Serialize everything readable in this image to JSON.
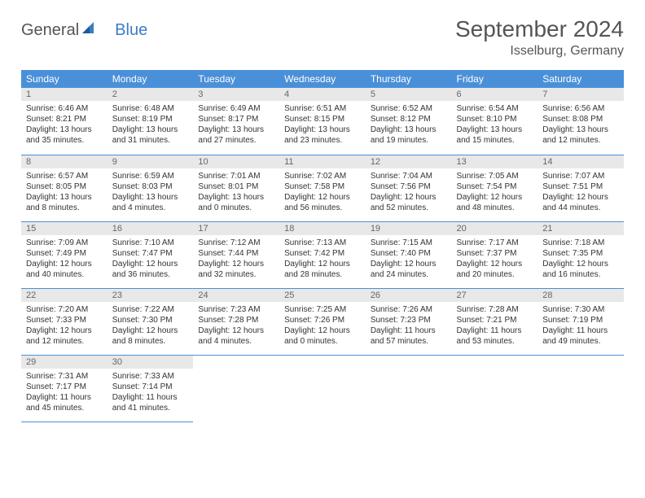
{
  "logo": {
    "general": "General",
    "blue": "Blue"
  },
  "title": "September 2024",
  "location": "Isselburg, Germany",
  "colors": {
    "header_bg": "#4a90d9",
    "header_text": "#ffffff",
    "daynum_bg": "#e8e8e8",
    "daynum_text": "#666666",
    "body_text": "#333333",
    "logo_blue": "#3a7cc4",
    "logo_gray": "#555555"
  },
  "day_names": [
    "Sunday",
    "Monday",
    "Tuesday",
    "Wednesday",
    "Thursday",
    "Friday",
    "Saturday"
  ],
  "weeks": [
    [
      {
        "n": "1",
        "sunrise": "Sunrise: 6:46 AM",
        "sunset": "Sunset: 8:21 PM",
        "dl1": "Daylight: 13 hours",
        "dl2": "and 35 minutes."
      },
      {
        "n": "2",
        "sunrise": "Sunrise: 6:48 AM",
        "sunset": "Sunset: 8:19 PM",
        "dl1": "Daylight: 13 hours",
        "dl2": "and 31 minutes."
      },
      {
        "n": "3",
        "sunrise": "Sunrise: 6:49 AM",
        "sunset": "Sunset: 8:17 PM",
        "dl1": "Daylight: 13 hours",
        "dl2": "and 27 minutes."
      },
      {
        "n": "4",
        "sunrise": "Sunrise: 6:51 AM",
        "sunset": "Sunset: 8:15 PM",
        "dl1": "Daylight: 13 hours",
        "dl2": "and 23 minutes."
      },
      {
        "n": "5",
        "sunrise": "Sunrise: 6:52 AM",
        "sunset": "Sunset: 8:12 PM",
        "dl1": "Daylight: 13 hours",
        "dl2": "and 19 minutes."
      },
      {
        "n": "6",
        "sunrise": "Sunrise: 6:54 AM",
        "sunset": "Sunset: 8:10 PM",
        "dl1": "Daylight: 13 hours",
        "dl2": "and 15 minutes."
      },
      {
        "n": "7",
        "sunrise": "Sunrise: 6:56 AM",
        "sunset": "Sunset: 8:08 PM",
        "dl1": "Daylight: 13 hours",
        "dl2": "and 12 minutes."
      }
    ],
    [
      {
        "n": "8",
        "sunrise": "Sunrise: 6:57 AM",
        "sunset": "Sunset: 8:05 PM",
        "dl1": "Daylight: 13 hours",
        "dl2": "and 8 minutes."
      },
      {
        "n": "9",
        "sunrise": "Sunrise: 6:59 AM",
        "sunset": "Sunset: 8:03 PM",
        "dl1": "Daylight: 13 hours",
        "dl2": "and 4 minutes."
      },
      {
        "n": "10",
        "sunrise": "Sunrise: 7:01 AM",
        "sunset": "Sunset: 8:01 PM",
        "dl1": "Daylight: 13 hours",
        "dl2": "and 0 minutes."
      },
      {
        "n": "11",
        "sunrise": "Sunrise: 7:02 AM",
        "sunset": "Sunset: 7:58 PM",
        "dl1": "Daylight: 12 hours",
        "dl2": "and 56 minutes."
      },
      {
        "n": "12",
        "sunrise": "Sunrise: 7:04 AM",
        "sunset": "Sunset: 7:56 PM",
        "dl1": "Daylight: 12 hours",
        "dl2": "and 52 minutes."
      },
      {
        "n": "13",
        "sunrise": "Sunrise: 7:05 AM",
        "sunset": "Sunset: 7:54 PM",
        "dl1": "Daylight: 12 hours",
        "dl2": "and 48 minutes."
      },
      {
        "n": "14",
        "sunrise": "Sunrise: 7:07 AM",
        "sunset": "Sunset: 7:51 PM",
        "dl1": "Daylight: 12 hours",
        "dl2": "and 44 minutes."
      }
    ],
    [
      {
        "n": "15",
        "sunrise": "Sunrise: 7:09 AM",
        "sunset": "Sunset: 7:49 PM",
        "dl1": "Daylight: 12 hours",
        "dl2": "and 40 minutes."
      },
      {
        "n": "16",
        "sunrise": "Sunrise: 7:10 AM",
        "sunset": "Sunset: 7:47 PM",
        "dl1": "Daylight: 12 hours",
        "dl2": "and 36 minutes."
      },
      {
        "n": "17",
        "sunrise": "Sunrise: 7:12 AM",
        "sunset": "Sunset: 7:44 PM",
        "dl1": "Daylight: 12 hours",
        "dl2": "and 32 minutes."
      },
      {
        "n": "18",
        "sunrise": "Sunrise: 7:13 AM",
        "sunset": "Sunset: 7:42 PM",
        "dl1": "Daylight: 12 hours",
        "dl2": "and 28 minutes."
      },
      {
        "n": "19",
        "sunrise": "Sunrise: 7:15 AM",
        "sunset": "Sunset: 7:40 PM",
        "dl1": "Daylight: 12 hours",
        "dl2": "and 24 minutes."
      },
      {
        "n": "20",
        "sunrise": "Sunrise: 7:17 AM",
        "sunset": "Sunset: 7:37 PM",
        "dl1": "Daylight: 12 hours",
        "dl2": "and 20 minutes."
      },
      {
        "n": "21",
        "sunrise": "Sunrise: 7:18 AM",
        "sunset": "Sunset: 7:35 PM",
        "dl1": "Daylight: 12 hours",
        "dl2": "and 16 minutes."
      }
    ],
    [
      {
        "n": "22",
        "sunrise": "Sunrise: 7:20 AM",
        "sunset": "Sunset: 7:33 PM",
        "dl1": "Daylight: 12 hours",
        "dl2": "and 12 minutes."
      },
      {
        "n": "23",
        "sunrise": "Sunrise: 7:22 AM",
        "sunset": "Sunset: 7:30 PM",
        "dl1": "Daylight: 12 hours",
        "dl2": "and 8 minutes."
      },
      {
        "n": "24",
        "sunrise": "Sunrise: 7:23 AM",
        "sunset": "Sunset: 7:28 PM",
        "dl1": "Daylight: 12 hours",
        "dl2": "and 4 minutes."
      },
      {
        "n": "25",
        "sunrise": "Sunrise: 7:25 AM",
        "sunset": "Sunset: 7:26 PM",
        "dl1": "Daylight: 12 hours",
        "dl2": "and 0 minutes."
      },
      {
        "n": "26",
        "sunrise": "Sunrise: 7:26 AM",
        "sunset": "Sunset: 7:23 PM",
        "dl1": "Daylight: 11 hours",
        "dl2": "and 57 minutes."
      },
      {
        "n": "27",
        "sunrise": "Sunrise: 7:28 AM",
        "sunset": "Sunset: 7:21 PM",
        "dl1": "Daylight: 11 hours",
        "dl2": "and 53 minutes."
      },
      {
        "n": "28",
        "sunrise": "Sunrise: 7:30 AM",
        "sunset": "Sunset: 7:19 PM",
        "dl1": "Daylight: 11 hours",
        "dl2": "and 49 minutes."
      }
    ],
    [
      {
        "n": "29",
        "sunrise": "Sunrise: 7:31 AM",
        "sunset": "Sunset: 7:17 PM",
        "dl1": "Daylight: 11 hours",
        "dl2": "and 45 minutes."
      },
      {
        "n": "30",
        "sunrise": "Sunrise: 7:33 AM",
        "sunset": "Sunset: 7:14 PM",
        "dl1": "Daylight: 11 hours",
        "dl2": "and 41 minutes."
      },
      null,
      null,
      null,
      null,
      null
    ]
  ]
}
